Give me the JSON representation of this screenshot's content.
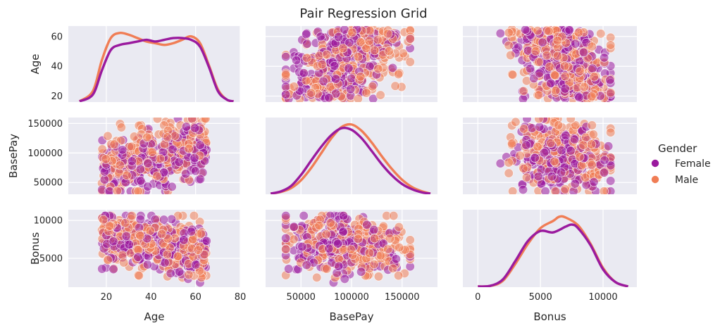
{
  "chart_data": {
    "type": "scatter",
    "title": "Pair Regression Grid",
    "variables": [
      "Age",
      "BasePay",
      "Bonus"
    ],
    "axis_ranges": {
      "Age_kde_x": [
        3,
        80
      ],
      "BasePay_kde_x": [
        15000,
        185000
      ],
      "Bonus_kde_x": [
        -1200,
        12700
      ],
      "Age_y": [
        16,
        67
      ],
      "BasePay_y": [
        30000,
        160000
      ],
      "Bonus_y": [
        1200,
        11400
      ]
    },
    "ticks": {
      "Age_x": [
        "20",
        "40",
        "60",
        "80"
      ],
      "Age_y": [
        "20",
        "40",
        "60"
      ],
      "BasePay_x": [
        "50000",
        "100000",
        "150000"
      ],
      "BasePay_y": [
        "50000",
        "100000",
        "150000"
      ],
      "Bonus_x": [
        "0",
        "5000",
        "10000"
      ],
      "Bonus_y": [
        "5000",
        "10000"
      ]
    },
    "legend": {
      "title": "Gender",
      "placement": "right",
      "entries": [
        {
          "name": "Female",
          "color": "#9a1a9e"
        },
        {
          "name": "Male",
          "color": "#f07d55"
        }
      ]
    },
    "grid": true,
    "series": [
      {
        "name": "Female",
        "color": "#9a1a9e",
        "age_kde": [
          [
            8,
            0.0
          ],
          [
            14,
            0.004
          ],
          [
            18,
            0.018
          ],
          [
            22,
            0.03
          ],
          [
            26,
            0.033
          ],
          [
            30,
            0.034
          ],
          [
            34,
            0.035
          ],
          [
            38,
            0.036
          ],
          [
            42,
            0.035
          ],
          [
            46,
            0.036
          ],
          [
            50,
            0.037
          ],
          [
            54,
            0.037
          ],
          [
            58,
            0.036
          ],
          [
            62,
            0.032
          ],
          [
            66,
            0.02
          ],
          [
            70,
            0.006
          ],
          [
            74,
            0.001
          ],
          [
            77,
            0.0
          ]
        ],
        "basepay_kde": [
          [
            20000,
            0.0
          ],
          [
            30000,
            0.0004
          ],
          [
            40000,
            0.0014
          ],
          [
            50000,
            0.0035
          ],
          [
            60000,
            0.0062
          ],
          [
            70000,
            0.0088
          ],
          [
            80000,
            0.011
          ],
          [
            90000,
            0.0123
          ],
          [
            100000,
            0.012
          ],
          [
            110000,
            0.0104
          ],
          [
            120000,
            0.008
          ],
          [
            130000,
            0.0055
          ],
          [
            140000,
            0.0034
          ],
          [
            150000,
            0.0018
          ],
          [
            160000,
            0.0008
          ],
          [
            170000,
            0.0002
          ],
          [
            178000,
            0.0
          ]
        ],
        "bonus_kde": [
          [
            0,
            0.0
          ],
          [
            1000,
            0.0005
          ],
          [
            2000,
            0.005
          ],
          [
            3000,
            0.018
          ],
          [
            4000,
            0.032
          ],
          [
            5000,
            0.039
          ],
          [
            6000,
            0.038
          ],
          [
            7000,
            0.042
          ],
          [
            7500,
            0.0435
          ],
          [
            8000,
            0.041
          ],
          [
            9000,
            0.029
          ],
          [
            10000,
            0.012
          ],
          [
            11000,
            0.003
          ],
          [
            12000,
            0.0
          ]
        ]
      },
      {
        "name": "Male",
        "color": "#f07d55",
        "age_kde": [
          [
            8,
            0.0
          ],
          [
            14,
            0.006
          ],
          [
            18,
            0.024
          ],
          [
            22,
            0.037
          ],
          [
            26,
            0.04
          ],
          [
            30,
            0.039
          ],
          [
            34,
            0.037
          ],
          [
            38,
            0.035
          ],
          [
            42,
            0.034
          ],
          [
            46,
            0.033
          ],
          [
            50,
            0.034
          ],
          [
            54,
            0.036
          ],
          [
            58,
            0.038
          ],
          [
            62,
            0.034
          ],
          [
            66,
            0.021
          ],
          [
            70,
            0.007
          ],
          [
            74,
            0.001
          ],
          [
            77,
            0.0
          ]
        ],
        "basepay_kde": [
          [
            20000,
            0.0
          ],
          [
            30000,
            0.0003
          ],
          [
            40000,
            0.001
          ],
          [
            50000,
            0.0025
          ],
          [
            60000,
            0.0048
          ],
          [
            70000,
            0.0076
          ],
          [
            80000,
            0.0104
          ],
          [
            90000,
            0.0125
          ],
          [
            100000,
            0.013
          ],
          [
            110000,
            0.0118
          ],
          [
            120000,
            0.0096
          ],
          [
            130000,
            0.007
          ],
          [
            140000,
            0.0046
          ],
          [
            150000,
            0.0026
          ],
          [
            160000,
            0.0012
          ],
          [
            170000,
            0.0004
          ],
          [
            178000,
            0.0
          ]
        ],
        "bonus_kde": [
          [
            0,
            0.0
          ],
          [
            1000,
            0.0004
          ],
          [
            2000,
            0.004
          ],
          [
            3000,
            0.016
          ],
          [
            4000,
            0.03
          ],
          [
            5000,
            0.041
          ],
          [
            6000,
            0.046
          ],
          [
            6500,
            0.049
          ],
          [
            7000,
            0.0485
          ],
          [
            8000,
            0.043
          ],
          [
            9000,
            0.03
          ],
          [
            10000,
            0.013
          ],
          [
            11000,
            0.003
          ],
          [
            12000,
            0.0
          ]
        ]
      }
    ]
  }
}
